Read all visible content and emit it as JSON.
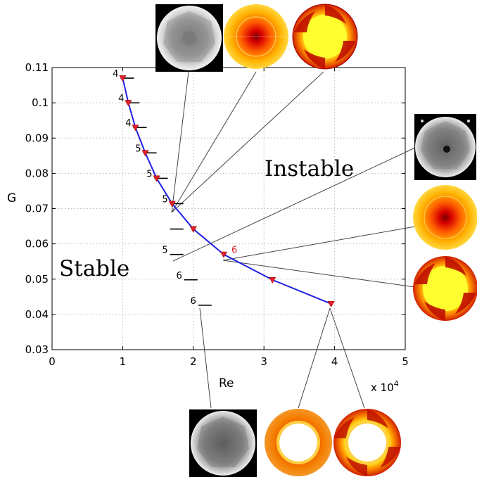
{
  "chart_data": {
    "type": "line",
    "xlabel": "Re",
    "ylabel": "G",
    "x_multiplier_label": "x 10",
    "x_multiplier_exponent": "4",
    "xlim": [
      0,
      5
    ],
    "ylim": [
      0.03,
      0.11
    ],
    "x_ticks": [
      "0",
      "1",
      "2",
      "3",
      "4",
      "5"
    ],
    "y_ticks": [
      "0.03",
      "0.04",
      "0.05",
      "0.06",
      "0.07",
      "0.08",
      "0.09",
      "0.1",
      "0.11"
    ],
    "y_tick_values": [
      0.03,
      0.04,
      0.05,
      0.06,
      0.07,
      0.08,
      0.09,
      0.1,
      0.11
    ],
    "grid": true,
    "region_labels": {
      "stable": "Stable",
      "unstable": "Instable"
    },
    "series": [
      {
        "color": "#1f1fe0",
        "marker": "triangle-down",
        "marker_color": "#e0202c",
        "x": [
          1.0,
          1.08,
          1.18,
          1.32,
          1.48,
          1.7,
          2.0,
          2.43,
          3.12,
          3.95
        ],
        "y": [
          0.107,
          0.1,
          0.093,
          0.0858,
          0.0786,
          0.0714,
          0.0642,
          0.057,
          0.0498,
          0.043
        ]
      }
    ],
    "mode_annotations": [
      {
        "label": "4",
        "x": 1.0,
        "y": 0.107,
        "color": "#000000"
      },
      {
        "label": "4",
        "x": 1.08,
        "y": 0.1,
        "color": "#000000"
      },
      {
        "label": "4",
        "x": 1.18,
        "y": 0.093,
        "color": "#000000"
      },
      {
        "label": "5",
        "x": 1.32,
        "y": 0.0858,
        "color": "#000000"
      },
      {
        "label": "5",
        "x": 1.48,
        "y": 0.0786,
        "color": "#000000"
      },
      {
        "label": "5",
        "x": 1.7,
        "y": 0.0714,
        "color": "#000000"
      },
      {
        "label": "",
        "x": 1.7,
        "y": 0.0642,
        "color": "#000000"
      },
      {
        "label": "5",
        "x": 1.7,
        "y": 0.057,
        "color": "#000000"
      },
      {
        "label": "6",
        "x": 1.9,
        "y": 0.0498,
        "color": "#000000"
      },
      {
        "label": "6",
        "x": 2.1,
        "y": 0.0426,
        "color": "#000000"
      },
      {
        "label": "6",
        "x": 2.43,
        "y": 0.057,
        "color": "#e0202c"
      }
    ]
  }
}
